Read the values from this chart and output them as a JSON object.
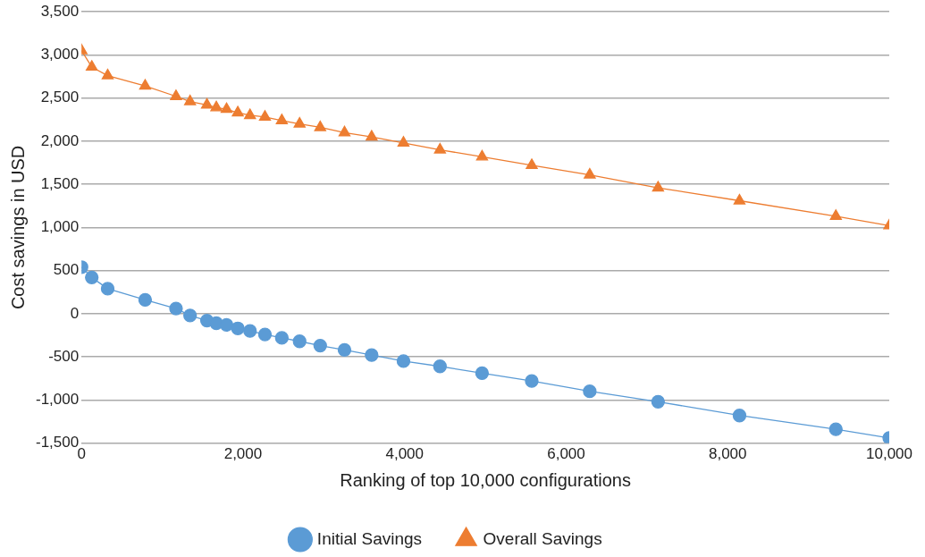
{
  "chart_data": {
    "type": "line",
    "xlabel": "Ranking of top 10,000 configurations",
    "ylabel": "Cost savings in USD",
    "x": [
      0,
      127,
      324,
      788,
      1170,
      1344,
      1553,
      1669,
      1796,
      1935,
      2086,
      2271,
      2480,
      2700,
      2955,
      3256,
      3592,
      3986,
      4438,
      4959,
      5574,
      6292,
      7138,
      8146,
      9339,
      10000
    ],
    "series": [
      {
        "name": "Initial Savings",
        "color": "#5b9bd5",
        "marker": "circle",
        "values": [
          540,
          420,
          290,
          160,
          60,
          -20,
          -80,
          -110,
          -130,
          -170,
          -200,
          -240,
          -280,
          -320,
          -370,
          -420,
          -480,
          -550,
          -610,
          -690,
          -780,
          -900,
          -1020,
          -1180,
          -1340,
          -1440
        ]
      },
      {
        "name": "Overall Savings",
        "color": "#ed7d31",
        "marker": "triangle",
        "values": [
          3050,
          2860,
          2760,
          2640,
          2520,
          2460,
          2420,
          2390,
          2370,
          2330,
          2300,
          2280,
          2240,
          2200,
          2160,
          2100,
          2050,
          1980,
          1900,
          1820,
          1720,
          1610,
          1460,
          1310,
          1130,
          1020
        ]
      }
    ],
    "xlim": [
      0,
      10000
    ],
    "xticks": [
      0,
      {
        "value": 2000,
        "label": "2,000"
      },
      {
        "value": 4000,
        "label": "4,000"
      },
      {
        "value": 6000,
        "label": "6,000"
      },
      {
        "value": 8000,
        "label": "8,000"
      },
      {
        "value": 10000,
        "label": "10,000"
      }
    ],
    "ylim": [
      -1500,
      3500
    ],
    "yticks": [
      {
        "value": -1500,
        "label": "-1,500"
      },
      {
        "value": -1000,
        "label": "-1,000"
      },
      -500,
      0,
      500,
      {
        "value": 1000,
        "label": "1,000"
      },
      {
        "value": 1500,
        "label": "1,500"
      },
      {
        "value": 2000,
        "label": "2,000"
      },
      {
        "value": 2500,
        "label": "2,500"
      },
      {
        "value": 3000,
        "label": "3,000"
      },
      {
        "value": 3500,
        "label": "3,500"
      }
    ],
    "grid": "y",
    "legend": "bottom"
  }
}
